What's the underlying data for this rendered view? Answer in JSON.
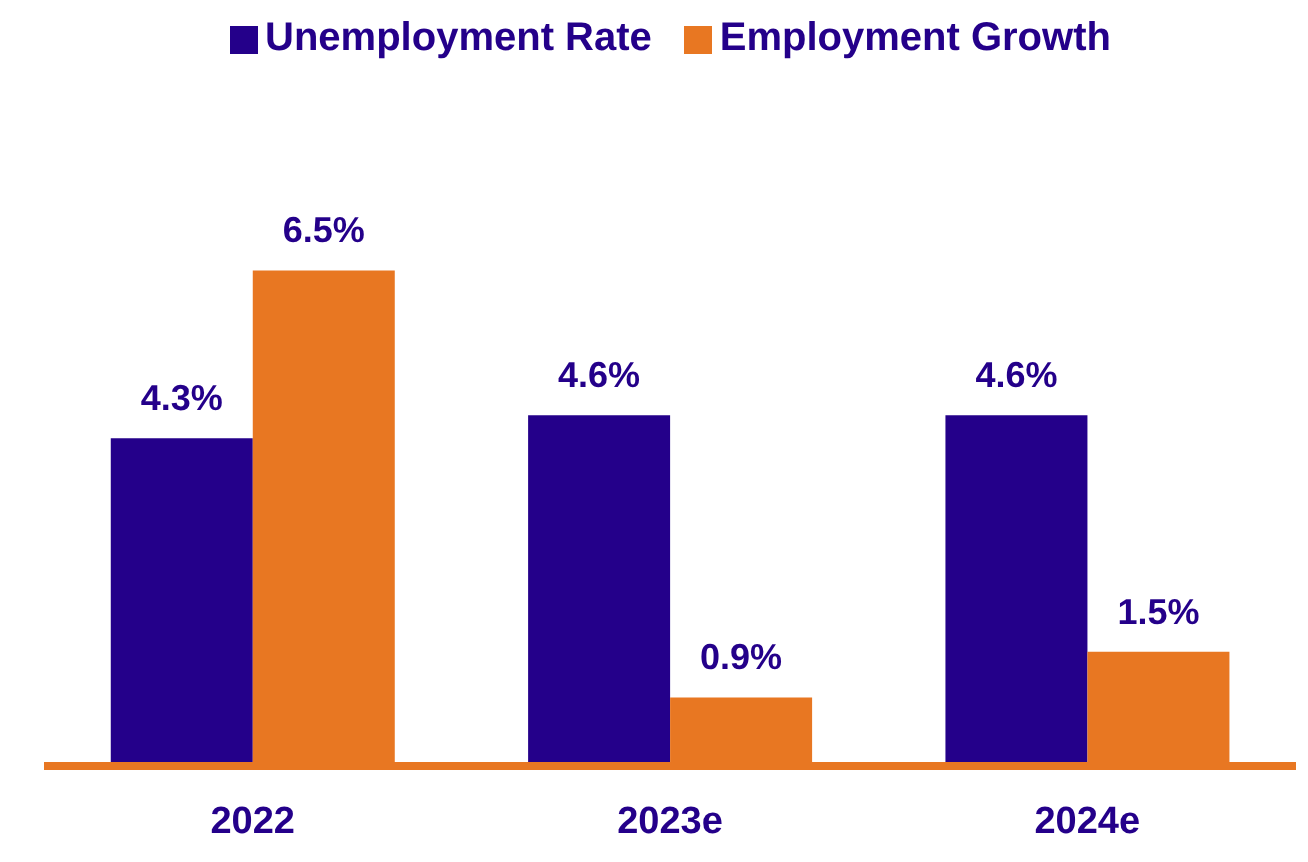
{
  "chart_data": {
    "type": "bar",
    "categories": [
      "2022",
      "2023e",
      "2024e"
    ],
    "series": [
      {
        "name": "Unemployment Rate",
        "color": "#24008a",
        "values": [
          4.3,
          4.6,
          4.6
        ],
        "value_labels": [
          "4.3%",
          "4.6%",
          "4.6%"
        ]
      },
      {
        "name": "Employment Growth",
        "color": "#e87722",
        "values": [
          6.5,
          0.9,
          1.5
        ],
        "value_labels": [
          "6.5%",
          "0.9%",
          "1.5%"
        ]
      }
    ],
    "legend": "top",
    "grid": false
  }
}
